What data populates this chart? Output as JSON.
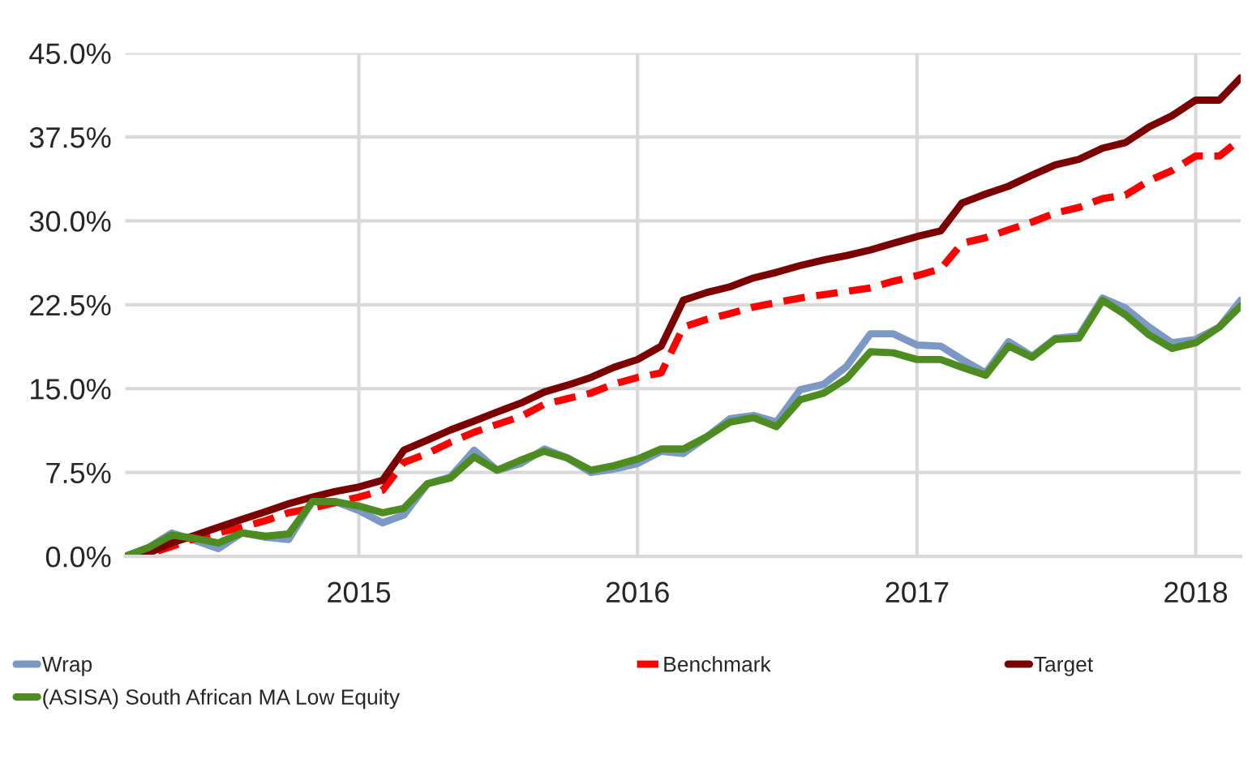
{
  "chart_data": {
    "type": "line",
    "x": [
      "2014-03",
      "2014-04",
      "2014-05",
      "2014-06",
      "2014-07",
      "2014-08",
      "2014-09",
      "2014-10",
      "2014-11",
      "2014-12",
      "2015-01",
      "2015-02",
      "2015-03",
      "2015-04",
      "2015-05",
      "2015-06",
      "2015-07",
      "2015-08",
      "2015-09",
      "2015-10",
      "2015-11",
      "2015-12",
      "2016-01",
      "2016-02",
      "2016-03",
      "2016-04",
      "2016-05",
      "2016-06",
      "2016-07",
      "2016-08",
      "2016-09",
      "2016-10",
      "2016-11",
      "2016-12",
      "2017-01",
      "2017-02",
      "2017-03",
      "2017-04",
      "2017-05",
      "2017-06",
      "2017-07",
      "2017-08",
      "2017-09",
      "2017-10",
      "2017-11",
      "2017-12",
      "2018-01",
      "2018-02",
      "2018-03"
    ],
    "series": [
      {
        "name": "Wrap",
        "color": "#7b99c4",
        "line_style": "solid",
        "values": [
          0,
          0.8,
          2.1,
          1.4,
          0.7,
          2.1,
          1.7,
          1.5,
          4.9,
          4.9,
          4.1,
          3.0,
          3.7,
          6.5,
          7.1,
          9.5,
          7.7,
          8.3,
          9.6,
          8.8,
          7.5,
          7.8,
          8.3,
          9.4,
          9.2,
          10.7,
          12.3,
          12.6,
          12.0,
          14.9,
          15.4,
          17.0,
          19.9,
          19.9,
          18.9,
          18.8,
          17.6,
          16.4,
          19.2,
          17.9,
          19.5,
          19.7,
          23.1,
          22.2,
          20.5,
          19.1,
          19.4,
          20.5,
          22.9
        ]
      },
      {
        "name": "Benchmark",
        "color": "#ff0000",
        "line_style": "dashed",
        "values": [
          0,
          0.2,
          0.9,
          1.6,
          2.1,
          2.6,
          3.2,
          3.9,
          4.3,
          4.8,
          5.3,
          5.9,
          8.4,
          9.2,
          10.2,
          11.1,
          11.8,
          12.5,
          13.6,
          14.1,
          14.6,
          15.4,
          16.0,
          16.4,
          20.5,
          21.2,
          21.7,
          22.3,
          22.7,
          23.1,
          23.4,
          23.7,
          24.0,
          24.6,
          25.1,
          25.7,
          28.0,
          28.5,
          29.2,
          29.9,
          30.7,
          31.2,
          32.0,
          32.3,
          33.6,
          34.5,
          35.8,
          35.8,
          37.3
        ]
      },
      {
        "name": "Target",
        "color": "#7b0000",
        "line_style": "solid",
        "values": [
          0,
          0.3,
          1.2,
          1.9,
          2.6,
          3.3,
          4.0,
          4.7,
          5.3,
          5.8,
          6.2,
          6.8,
          9.5,
          10.4,
          11.3,
          12.1,
          12.9,
          13.7,
          14.7,
          15.3,
          16.0,
          16.9,
          17.6,
          18.8,
          22.9,
          23.6,
          24.1,
          24.9,
          25.4,
          26.0,
          26.5,
          26.9,
          27.4,
          28.0,
          28.6,
          29.1,
          31.6,
          32.4,
          33.1,
          34.1,
          35.0,
          35.5,
          36.5,
          37.0,
          38.4,
          39.4,
          40.8,
          40.8,
          42.8
        ]
      },
      {
        "name": "(ASISA) South African MA Low Equity",
        "color": "#4e8c22",
        "line_style": "solid",
        "values": [
          0,
          0.8,
          1.9,
          1.6,
          1.2,
          2.1,
          1.8,
          2.0,
          4.9,
          4.9,
          4.5,
          3.9,
          4.3,
          6.5,
          7.0,
          8.9,
          7.7,
          8.6,
          9.4,
          8.8,
          7.7,
          8.1,
          8.7,
          9.6,
          9.6,
          10.7,
          12.0,
          12.4,
          11.6,
          14.0,
          14.6,
          15.9,
          18.3,
          18.2,
          17.6,
          17.6,
          16.9,
          16.2,
          18.8,
          17.8,
          19.4,
          19.5,
          22.9,
          21.6,
          19.8,
          18.6,
          19.1,
          20.5,
          22.4
        ]
      }
    ],
    "xlim": [
      "2014-03",
      "2018-03"
    ],
    "xticks": [
      {
        "value": "2015-01",
        "label": "2015"
      },
      {
        "value": "2016-01",
        "label": "2016"
      },
      {
        "value": "2017-01",
        "label": "2017"
      },
      {
        "value": "2018-01",
        "label": "2018"
      }
    ],
    "ylim": [
      0,
      45
    ],
    "yticks": [
      {
        "value": 0,
        "label": "0.0%"
      },
      {
        "value": 7.5,
        "label": "7.5%"
      },
      {
        "value": 15,
        "label": "15.0%"
      },
      {
        "value": 22.5,
        "label": "22.5%"
      },
      {
        "value": 30,
        "label": "30.0%"
      },
      {
        "value": 37.5,
        "label": "37.5%"
      },
      {
        "value": 45,
        "label": "45.0%"
      }
    ],
    "grid": true,
    "legend": "bottom"
  }
}
